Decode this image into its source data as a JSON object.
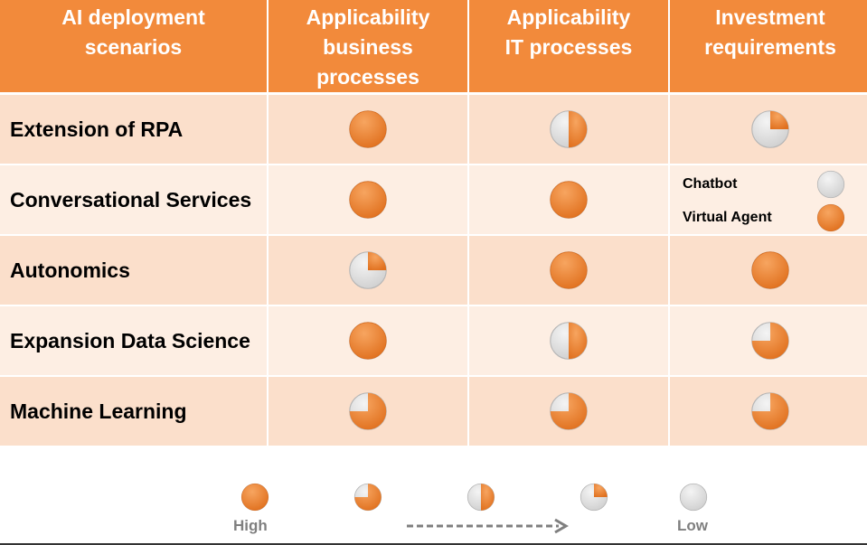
{
  "table": {
    "headers": [
      "AI deployment\nscenarios",
      "Applicability\nbusiness\nprocesses",
      "Applicability\nIT processes",
      "Investment\nrequirements"
    ],
    "rows": [
      {
        "label": "Extension of RPA",
        "business": 1.0,
        "it": 0.5,
        "investment": 0.25
      },
      {
        "label": "Conversational Services",
        "business": 1.0,
        "it": 1.0,
        "investment_split": [
          {
            "label": "Chatbot",
            "value": 0.0
          },
          {
            "label": "Virtual Agent",
            "value": 1.0
          }
        ]
      },
      {
        "label": "Autonomics",
        "business": 0.25,
        "it": 1.0,
        "investment": 1.0
      },
      {
        "label": "Expansion Data Science",
        "business": 1.0,
        "it": 0.5,
        "investment": 0.75
      },
      {
        "label": "Machine Learning",
        "business": 0.75,
        "it": 0.75,
        "investment": 0.75
      }
    ]
  },
  "legend": {
    "levels": [
      1.0,
      0.75,
      0.5,
      0.25,
      0.0
    ],
    "high_label": "High",
    "low_label": "Low"
  },
  "colors": {
    "orange": "#f0822f",
    "grey": "#d9d9d9",
    "header": "#f28a3b"
  }
}
